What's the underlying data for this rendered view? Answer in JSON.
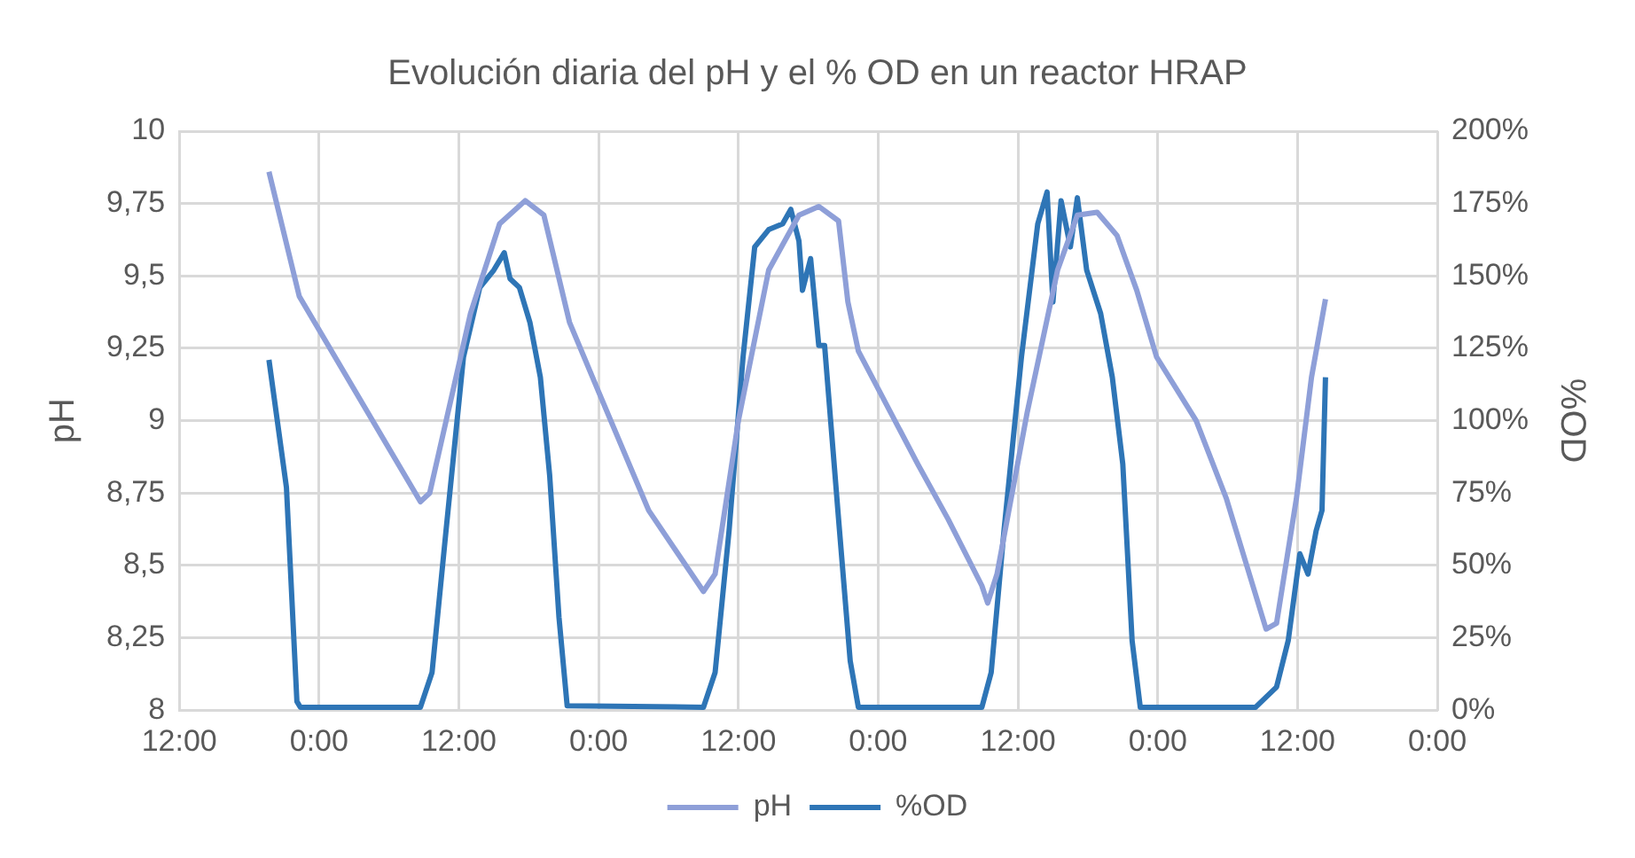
{
  "chart_data": {
    "type": "line",
    "title": "Evolución diaria del pH y el % OD en un reactor HRAP",
    "ylabel": "pH",
    "y2label": "%OD",
    "xlim": [
      "--01-01T12:00",
      "--01-06T00:00"
    ],
    "xticks": [
      {
        "value": "--01-01T12:00",
        "label": "12:00"
      },
      {
        "value": "--01-02T00:00",
        "label": "0:00"
      },
      {
        "value": "--01-02T12:00",
        "label": "12:00"
      },
      {
        "value": "--01-03T00:00",
        "label": "0:00"
      },
      {
        "value": "--01-03T12:00",
        "label": "12:00"
      },
      {
        "value": "--01-04T00:00",
        "label": "0:00"
      },
      {
        "value": "--01-04T12:00",
        "label": "12:00"
      },
      {
        "value": "--01-05T00:00",
        "label": "0:00"
      },
      {
        "value": "--01-05T12:00",
        "label": "12:00"
      },
      {
        "value": "--01-06T00:00",
        "label": "0:00"
      }
    ],
    "ylim": [
      8,
      10
    ],
    "yticks": [
      8,
      {
        "value": 8.25,
        "label": "8,25"
      },
      {
        "value": 8.5,
        "label": "8,5"
      },
      {
        "value": 8.75,
        "label": "8,75"
      },
      9,
      {
        "value": 9.25,
        "label": "9,25"
      },
      {
        "value": 9.5,
        "label": "9,5"
      },
      {
        "value": 9.75,
        "label": "9,75"
      },
      10
    ],
    "y2lim": [
      0,
      200
    ],
    "y2ticks": [
      {
        "value": 0,
        "label": "0%"
      },
      {
        "value": 25,
        "label": "25%"
      },
      {
        "value": 50,
        "label": "50%"
      },
      {
        "value": 75,
        "label": "75%"
      },
      {
        "value": 100,
        "label": "100%"
      },
      {
        "value": 125,
        "label": "125%"
      },
      {
        "value": 150,
        "label": "150%"
      },
      {
        "value": 175,
        "label": "175%"
      },
      {
        "value": 200,
        "label": "200%"
      }
    ],
    "grid": true,
    "legend": "bottom",
    "marker": "none",
    "line_style": "solid",
    "series": [
      {
        "name": "pH",
        "color": "#8e9fd8",
        "x": [
          "--01-01T19:42",
          "--01-01T22:18",
          "--01-02T08:42",
          "--01-02T09:30",
          "--01-02T13:00",
          "--01-02T15:30",
          "--01-02T17:42",
          "--01-02T19:18",
          "--01-02T21:30",
          "--01-03T00:06",
          "--01-03T04:18",
          "--01-03T09:00",
          "--01-03T10:00",
          "--01-03T12:00",
          "--01-03T14:36",
          "--01-03T17:12",
          "--01-03T18:54",
          "--01-03T20:36",
          "--01-03T21:24",
          "--01-03T22:18",
          "--01-04T03:24",
          "--01-04T06:00",
          "--01-04T08:54",
          "--01-04T09:24",
          "--01-04T10:12",
          "--01-04T12:48",
          "--01-04T15:24",
          "--01-04T17:06",
          "--01-04T18:48",
          "--01-04T20:30",
          "--01-04T22:12",
          "--01-04T23:54",
          "--01-05T03:18",
          "--01-05T05:54",
          "--01-05T09:18",
          "--01-05T10:12",
          "--01-05T11:54",
          "--01-05T13:12",
          "--01-05T14:24"
        ],
        "values": [
          9.86,
          9.43,
          8.72,
          8.75,
          9.37,
          9.68,
          9.76,
          9.71,
          9.34,
          9.09,
          8.69,
          8.41,
          8.47,
          9.0,
          9.52,
          9.71,
          9.74,
          9.69,
          9.41,
          9.24,
          8.85,
          8.66,
          8.43,
          8.37,
          8.47,
          9.03,
          9.52,
          9.71,
          9.72,
          9.64,
          9.45,
          9.22,
          9.0,
          8.73,
          8.28,
          8.3,
          8.73,
          9.15,
          9.42
        ]
      },
      {
        "name": "%OD",
        "color": "#2e75b6",
        "axis": "y2",
        "x": [
          "--01-01T19:42",
          "--01-01T21:12",
          "--01-01T22:06",
          "--01-01T22:24",
          "--01-02T08:42",
          "--01-02T09:42",
          "--01-02T10:54",
          "--01-02T12:24",
          "--01-02T13:48",
          "--01-02T15:00",
          "--01-02T15:54",
          "--01-02T16:24",
          "--01-02T17:12",
          "--01-02T18:06",
          "--01-02T19:00",
          "--01-02T19:48",
          "--01-02T20:36",
          "--01-02T21:18",
          "--01-03T09:00",
          "--01-03T10:00",
          "--01-03T11:12",
          "--01-03T12:24",
          "--01-03T13:24",
          "--01-03T14:36",
          "--01-03T15:48",
          "--01-03T16:30",
          "--01-03T17:12",
          "--01-03T17:30",
          "--01-03T18:12",
          "--01-03T18:54",
          "--01-03T19:24",
          "--01-03T20:00",
          "--01-03T20:36",
          "--01-03T21:36",
          "--01-03T22:18",
          "--01-04T08:54",
          "--01-04T09:42",
          "--01-04T10:48",
          "--01-04T12:18",
          "--01-04T13:42",
          "--01-04T14:30",
          "--01-04T15:00",
          "--01-04T15:42",
          "--01-04T16:30",
          "--01-04T17:06",
          "--01-04T17:54",
          "--01-04T19:06",
          "--01-04T20:06",
          "--01-04T21:00",
          "--01-04T21:48",
          "--01-04T22:30",
          "--01-05T08:24",
          "--01-05T10:12",
          "--01-05T11:12",
          "--01-05T12:12",
          "--01-05T12:54",
          "--01-05T13:36",
          "--01-05T14:06",
          "--01-05T14:24"
        ],
        "values": [
          121,
          77,
          3,
          1,
          1,
          13,
          62,
          122,
          146,
          152,
          158,
          149,
          146,
          134,
          115,
          81,
          32,
          1.5,
          1,
          13,
          62,
          122,
          160,
          166,
          168,
          173,
          162,
          145,
          156,
          126,
          126,
          96,
          66,
          17,
          1,
          1,
          13,
          62,
          122,
          168,
          179,
          141,
          176,
          160,
          177,
          152,
          137,
          115,
          85,
          24,
          1,
          1,
          8,
          24,
          54,
          47,
          62,
          69,
          115
        ]
      }
    ]
  }
}
